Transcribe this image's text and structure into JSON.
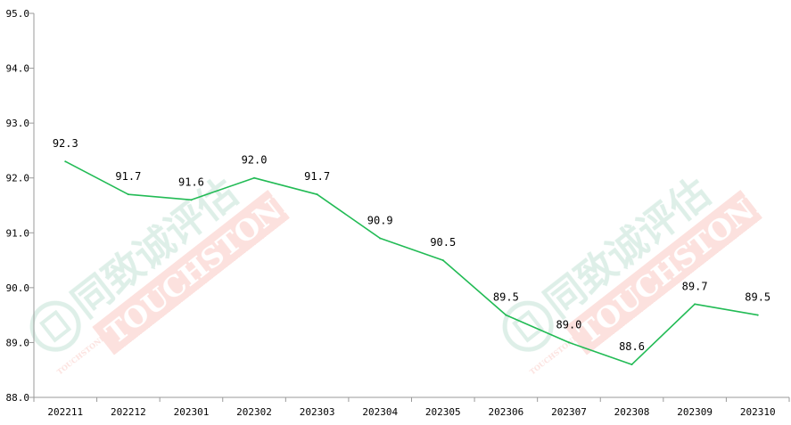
{
  "chart_data": {
    "type": "line",
    "categories": [
      "202211",
      "202212",
      "202301",
      "202302",
      "202303",
      "202304",
      "202305",
      "202306",
      "202307",
      "202308",
      "202309",
      "202310"
    ],
    "series": [
      {
        "values": [
          92.3,
          91.7,
          91.6,
          92.0,
          91.7,
          90.9,
          90.5,
          89.5,
          89.0,
          88.6,
          89.7,
          89.5
        ],
        "color": "#22bb55"
      }
    ],
    "data_labels": [
      "92.3",
      "91.7",
      "91.6",
      "92.0",
      "91.7",
      "90.9",
      "90.5",
      "89.5",
      "89.0",
      "88.6",
      "89.7",
      "89.5"
    ],
    "y_ticks": [
      "95.0",
      "94.0",
      "93.0",
      "92.0",
      "91.0",
      "90.0",
      "89.0",
      "88.0"
    ],
    "ylim": [
      88.0,
      95.0
    ],
    "grid": false,
    "legend": "none"
  },
  "watermark": {
    "cn_text": "同致诚评估",
    "en_text": "TOUCHSTONE",
    "small_text": "TOUCHSTONE",
    "green": "#2e9a6e",
    "red": "#e8432f"
  }
}
